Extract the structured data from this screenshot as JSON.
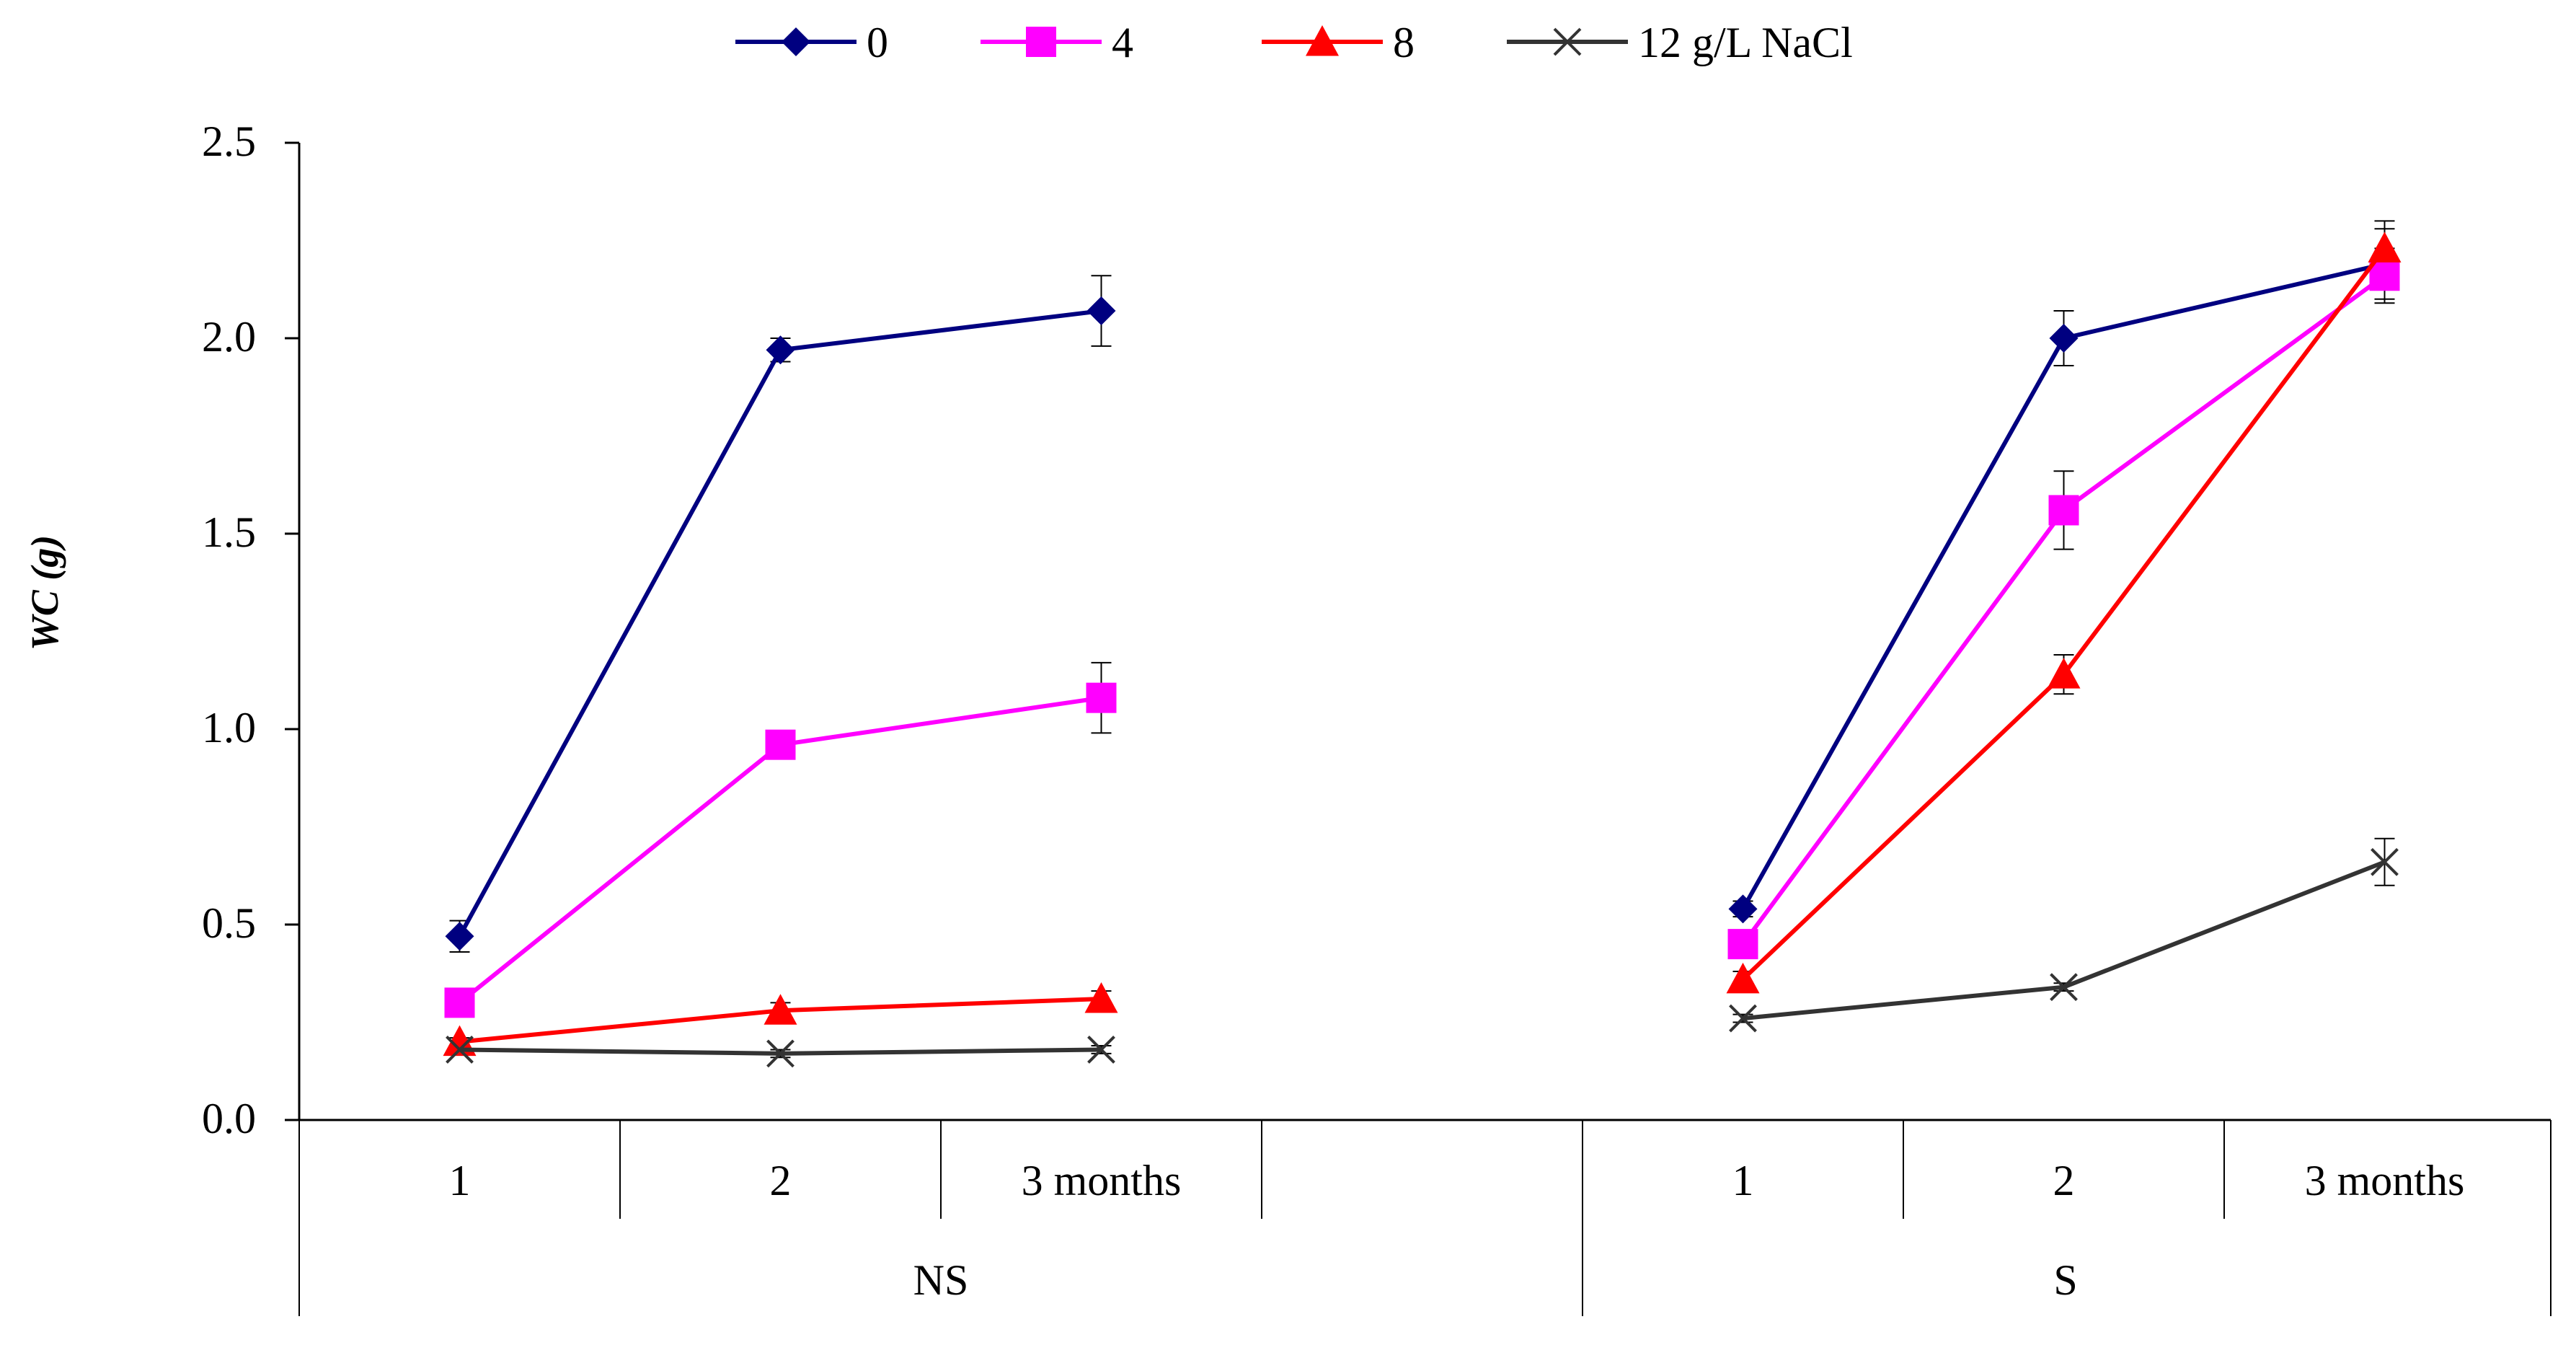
{
  "chart_data": {
    "type": "line",
    "title": "",
    "ylabel": "WC (g)",
    "xlabel": "",
    "ylim": [
      0,
      2.5
    ],
    "y_ticks": [
      "0.0",
      "0.5",
      "1.0",
      "1.5",
      "2.0",
      "2.5"
    ],
    "grid": false,
    "legend_position": "top",
    "groups": [
      {
        "name": "NS",
        "categories": [
          "1",
          "2",
          "3 months"
        ]
      },
      {
        "name": "S",
        "categories": [
          "1",
          "2",
          "3 months"
        ]
      }
    ],
    "series": [
      {
        "name": "0",
        "legend_label": "0",
        "color": "#000080",
        "marker": "diamond",
        "NS": [
          0.47,
          1.97,
          2.07
        ],
        "NS_err": [
          0.04,
          0.03,
          0.09
        ],
        "S": [
          0.54,
          2.0,
          2.19
        ],
        "S_err": [
          0.02,
          0.07,
          0.09
        ]
      },
      {
        "name": "4",
        "legend_label": "4",
        "color": "#ff00ff",
        "marker": "square",
        "NS": [
          0.3,
          0.96,
          1.08
        ],
        "NS_err": [
          0.02,
          0.02,
          0.09
        ],
        "S": [
          0.45,
          1.56,
          2.16
        ],
        "S_err": [
          0.02,
          0.1,
          0.07
        ]
      },
      {
        "name": "8",
        "legend_label": "8",
        "color": "#ff0000",
        "marker": "triangle",
        "NS": [
          0.2,
          0.28,
          0.31
        ],
        "NS_err": [
          0.01,
          0.02,
          0.02
        ],
        "S": [
          0.36,
          1.14,
          2.23
        ],
        "S_err": [
          0.02,
          0.05,
          0.07
        ]
      },
      {
        "name": "12",
        "legend_label": "12 g/L NaCl",
        "color": "#333333",
        "marker": "x",
        "NS": [
          0.18,
          0.17,
          0.18
        ],
        "NS_err": [
          0.01,
          0.01,
          0.01
        ],
        "S": [
          0.26,
          0.34,
          0.66
        ],
        "S_err": [
          0.01,
          0.01,
          0.06
        ]
      }
    ]
  }
}
